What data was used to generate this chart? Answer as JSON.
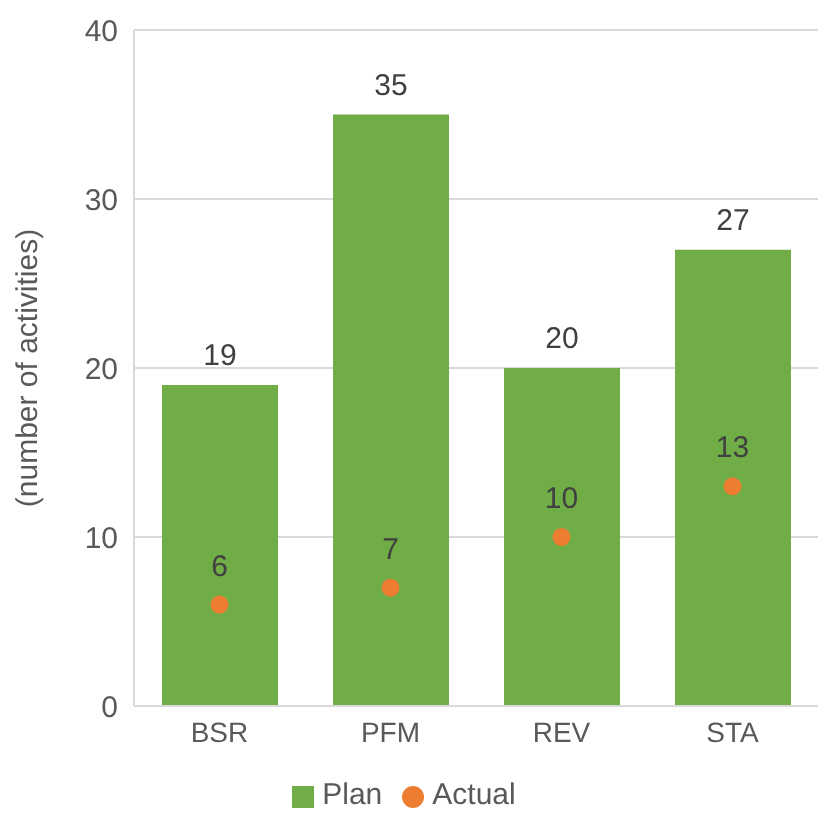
{
  "chart_data": {
    "type": "bar",
    "ylabel": "(number of activities)",
    "categories": [
      "BSR",
      "PFM",
      "REV",
      "STA"
    ],
    "series": [
      {
        "name": "Plan",
        "color": "#70ad47",
        "values": [
          19,
          35,
          20,
          27
        ]
      },
      {
        "name": "Actual",
        "type": "scatter",
        "color": "#ed7d31",
        "x": [
          "BSR",
          "PFM",
          "REV",
          "STA"
        ],
        "values": [
          6,
          7,
          10,
          13
        ]
      }
    ],
    "ylim": [
      0,
      40
    ],
    "yticks": [
      0,
      10,
      20,
      30,
      40
    ],
    "grid": "y",
    "legend": "bottom",
    "data_labels": true,
    "marker": "circle"
  }
}
